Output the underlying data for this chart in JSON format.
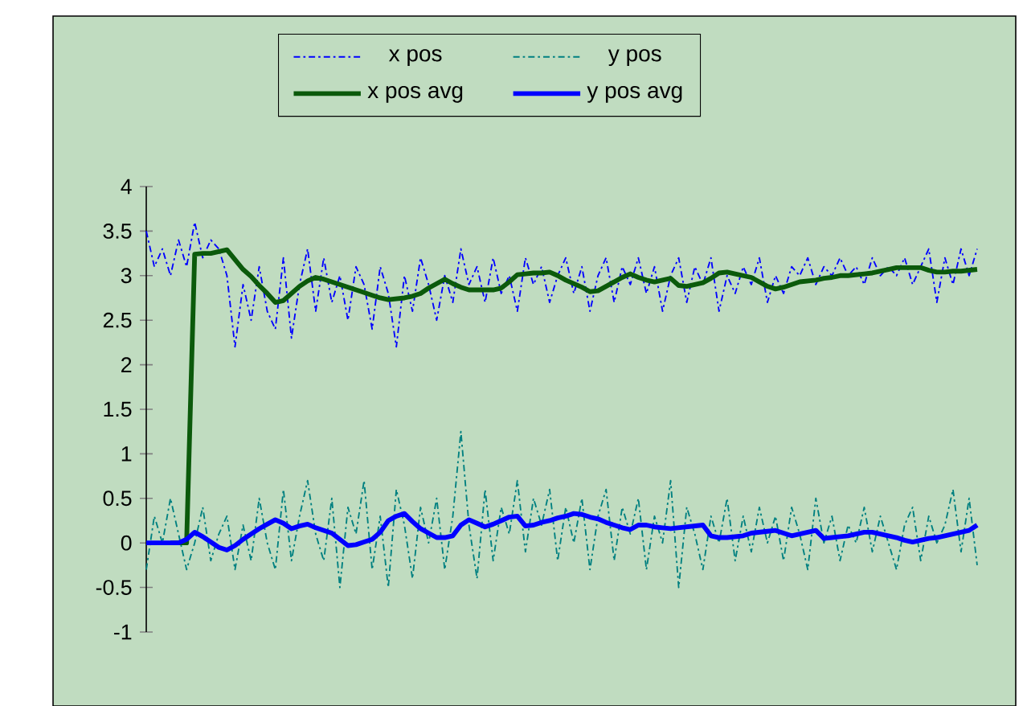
{
  "chart_data": {
    "type": "line",
    "ylim": [
      -1,
      4
    ],
    "yticks": [
      -1,
      -0.5,
      0,
      0.5,
      1,
      1.5,
      2,
      2.5,
      3,
      3.5,
      4
    ],
    "tick_labels": "y",
    "legend": "top",
    "categories": [
      null,
      null,
      null,
      null,
      null,
      null,
      null,
      null,
      null,
      null,
      null,
      null,
      null,
      null,
      null,
      null,
      null,
      null,
      null,
      null,
      null,
      null,
      null,
      null,
      null,
      null,
      null,
      null,
      null,
      null,
      null,
      null,
      null,
      null,
      null,
      null,
      null,
      null,
      null,
      null,
      null,
      null,
      null,
      null,
      null,
      null,
      null,
      null,
      null,
      null,
      null,
      null,
      null,
      null,
      null,
      null,
      null,
      null,
      null,
      null,
      null,
      null,
      null,
      null,
      null,
      null,
      null,
      null,
      null,
      null,
      null,
      null,
      null,
      null,
      null,
      null,
      null,
      null,
      null,
      null,
      null,
      null,
      null,
      null,
      null,
      null,
      null,
      null,
      null,
      null,
      null,
      null,
      null,
      null,
      null,
      null,
      null,
      null,
      null,
      null,
      null,
      null,
      null,
      null
    ],
    "series": [
      {
        "name": "x pos",
        "color": "#0000ff",
        "line_style": "dashed",
        "values": [
          3.5,
          3.1,
          3.3,
          3.0,
          3.4,
          3.1,
          3.6,
          3.2,
          3.4,
          3.3,
          3.0,
          2.2,
          2.9,
          2.5,
          3.1,
          2.6,
          2.4,
          3.2,
          2.3,
          2.9,
          3.3,
          2.6,
          3.2,
          2.7,
          3.0,
          2.5,
          3.1,
          2.9,
          2.4,
          3.1,
          2.8,
          2.2,
          3.0,
          2.6,
          3.2,
          2.9,
          2.5,
          3.0,
          2.7,
          3.3,
          2.9,
          3.1,
          2.7,
          3.2,
          2.8,
          3.0,
          2.6,
          3.2,
          2.9,
          3.1,
          2.7,
          3.0,
          3.2,
          2.8,
          3.1,
          2.6,
          3.0,
          3.2,
          2.7,
          3.1,
          2.9,
          3.2,
          2.8,
          3.1,
          2.6,
          3.0,
          3.2,
          2.7,
          3.1,
          2.9,
          3.2,
          2.6,
          3.0,
          2.8,
          3.1,
          2.9,
          3.2,
          2.7,
          3.0,
          2.8,
          3.1,
          3.0,
          3.2,
          2.9,
          3.1,
          3.0,
          3.2,
          3.0,
          3.1,
          2.9,
          3.2,
          3.0,
          3.1,
          3.0,
          3.2,
          2.9,
          3.1,
          3.3,
          2.7,
          3.2,
          2.9,
          3.3,
          3.0,
          3.3
        ]
      },
      {
        "name": "y pos",
        "color": "#008080",
        "line_style": "dashed",
        "values": [
          -0.3,
          0.3,
          0.0,
          0.5,
          0.1,
          -0.3,
          0.0,
          0.4,
          -0.2,
          0.1,
          0.3,
          -0.3,
          0.2,
          -0.2,
          0.5,
          0.0,
          -0.3,
          0.6,
          -0.2,
          0.3,
          0.7,
          0.1,
          -0.2,
          0.5,
          -0.5,
          0.4,
          0.1,
          0.7,
          -0.3,
          0.3,
          -0.5,
          0.6,
          0.2,
          -0.4,
          0.4,
          0.0,
          0.5,
          -0.3,
          0.3,
          1.25,
          0.2,
          -0.4,
          0.6,
          -0.2,
          0.4,
          0.1,
          0.7,
          -0.1,
          0.5,
          0.2,
          0.6,
          -0.2,
          0.4,
          0.0,
          0.5,
          -0.3,
          0.3,
          0.6,
          -0.2,
          0.4,
          0.1,
          0.5,
          -0.3,
          0.3,
          0.0,
          0.7,
          -0.5,
          0.4,
          0.1,
          -0.3,
          0.3,
          0.0,
          0.5,
          -0.2,
          0.3,
          -0.1,
          0.4,
          0.0,
          0.3,
          -0.2,
          0.4,
          0.1,
          -0.3,
          0.5,
          0.0,
          0.3,
          -0.2,
          0.2,
          0.0,
          0.4,
          -0.1,
          0.3,
          0.0,
          -0.3,
          0.2,
          0.4,
          -0.2,
          0.3,
          0.0,
          0.2,
          0.6,
          -0.1,
          0.5,
          -0.25
        ]
      },
      {
        "name": "x pos avg",
        "color": "#0b5a0b",
        "line_style": "solid",
        "values": [
          null,
          null,
          null,
          0,
          0,
          0,
          3.24,
          3.25,
          3.25,
          3.27,
          3.29,
          3.18,
          3.07,
          2.99,
          2.89,
          2.8,
          2.7,
          2.72,
          2.8,
          2.88,
          2.94,
          2.98,
          2.96,
          2.93,
          2.9,
          2.87,
          2.84,
          2.81,
          2.78,
          2.75,
          2.73,
          2.74,
          2.75,
          2.77,
          2.8,
          2.86,
          2.91,
          2.96,
          2.91,
          2.87,
          2.84,
          2.84,
          2.84,
          2.84,
          2.86,
          2.93,
          3.01,
          3.02,
          3.03,
          3.03,
          3.04,
          3.0,
          2.95,
          2.91,
          2.87,
          2.82,
          2.83,
          2.88,
          2.93,
          2.98,
          3.02,
          2.98,
          2.95,
          2.93,
          2.95,
          2.97,
          2.89,
          2.88,
          2.9,
          2.92,
          2.97,
          3.03,
          3.04,
          3.02,
          3.0,
          2.98,
          2.93,
          2.88,
          2.85,
          2.87,
          2.9,
          2.93,
          2.94,
          2.95,
          2.97,
          2.98,
          3.0,
          3.0,
          3.01,
          3.02,
          3.03,
          3.05,
          3.07,
          3.09,
          3.09,
          3.09,
          3.09,
          3.06,
          3.04,
          3.04,
          3.05,
          3.05,
          3.06,
          3.07
        ]
      },
      {
        "name": "y pos avg",
        "color": "#0000ff",
        "line_style": "solid",
        "values": [
          0,
          0,
          0,
          0,
          0,
          0.04,
          0.12,
          0.07,
          0.01,
          -0.05,
          -0.08,
          -0.03,
          0.04,
          0.1,
          0.16,
          0.21,
          0.26,
          0.22,
          0.16,
          0.19,
          0.21,
          0.17,
          0.14,
          0.11,
          0.04,
          -0.03,
          -0.02,
          0.01,
          0.04,
          0.12,
          0.25,
          0.3,
          0.33,
          0.24,
          0.16,
          0.11,
          0.06,
          0.06,
          0.08,
          0.2,
          0.26,
          0.22,
          0.18,
          0.21,
          0.25,
          0.29,
          0.3,
          0.19,
          0.2,
          0.23,
          0.25,
          0.28,
          0.3,
          0.33,
          0.32,
          0.29,
          0.27,
          0.23,
          0.2,
          0.17,
          0.15,
          0.2,
          0.2,
          0.18,
          0.17,
          0.16,
          0.17,
          0.18,
          0.19,
          0.2,
          0.08,
          0.06,
          0.06,
          0.07,
          0.08,
          0.11,
          0.12,
          0.13,
          0.14,
          0.11,
          0.08,
          0.1,
          0.12,
          0.14,
          0.05,
          0.06,
          0.07,
          0.08,
          0.1,
          0.12,
          0.12,
          0.1,
          0.08,
          0.06,
          0.03,
          0.01,
          0.03,
          0.05,
          0.06,
          0.08,
          0.1,
          0.12,
          0.14,
          0.2
        ]
      }
    ]
  }
}
